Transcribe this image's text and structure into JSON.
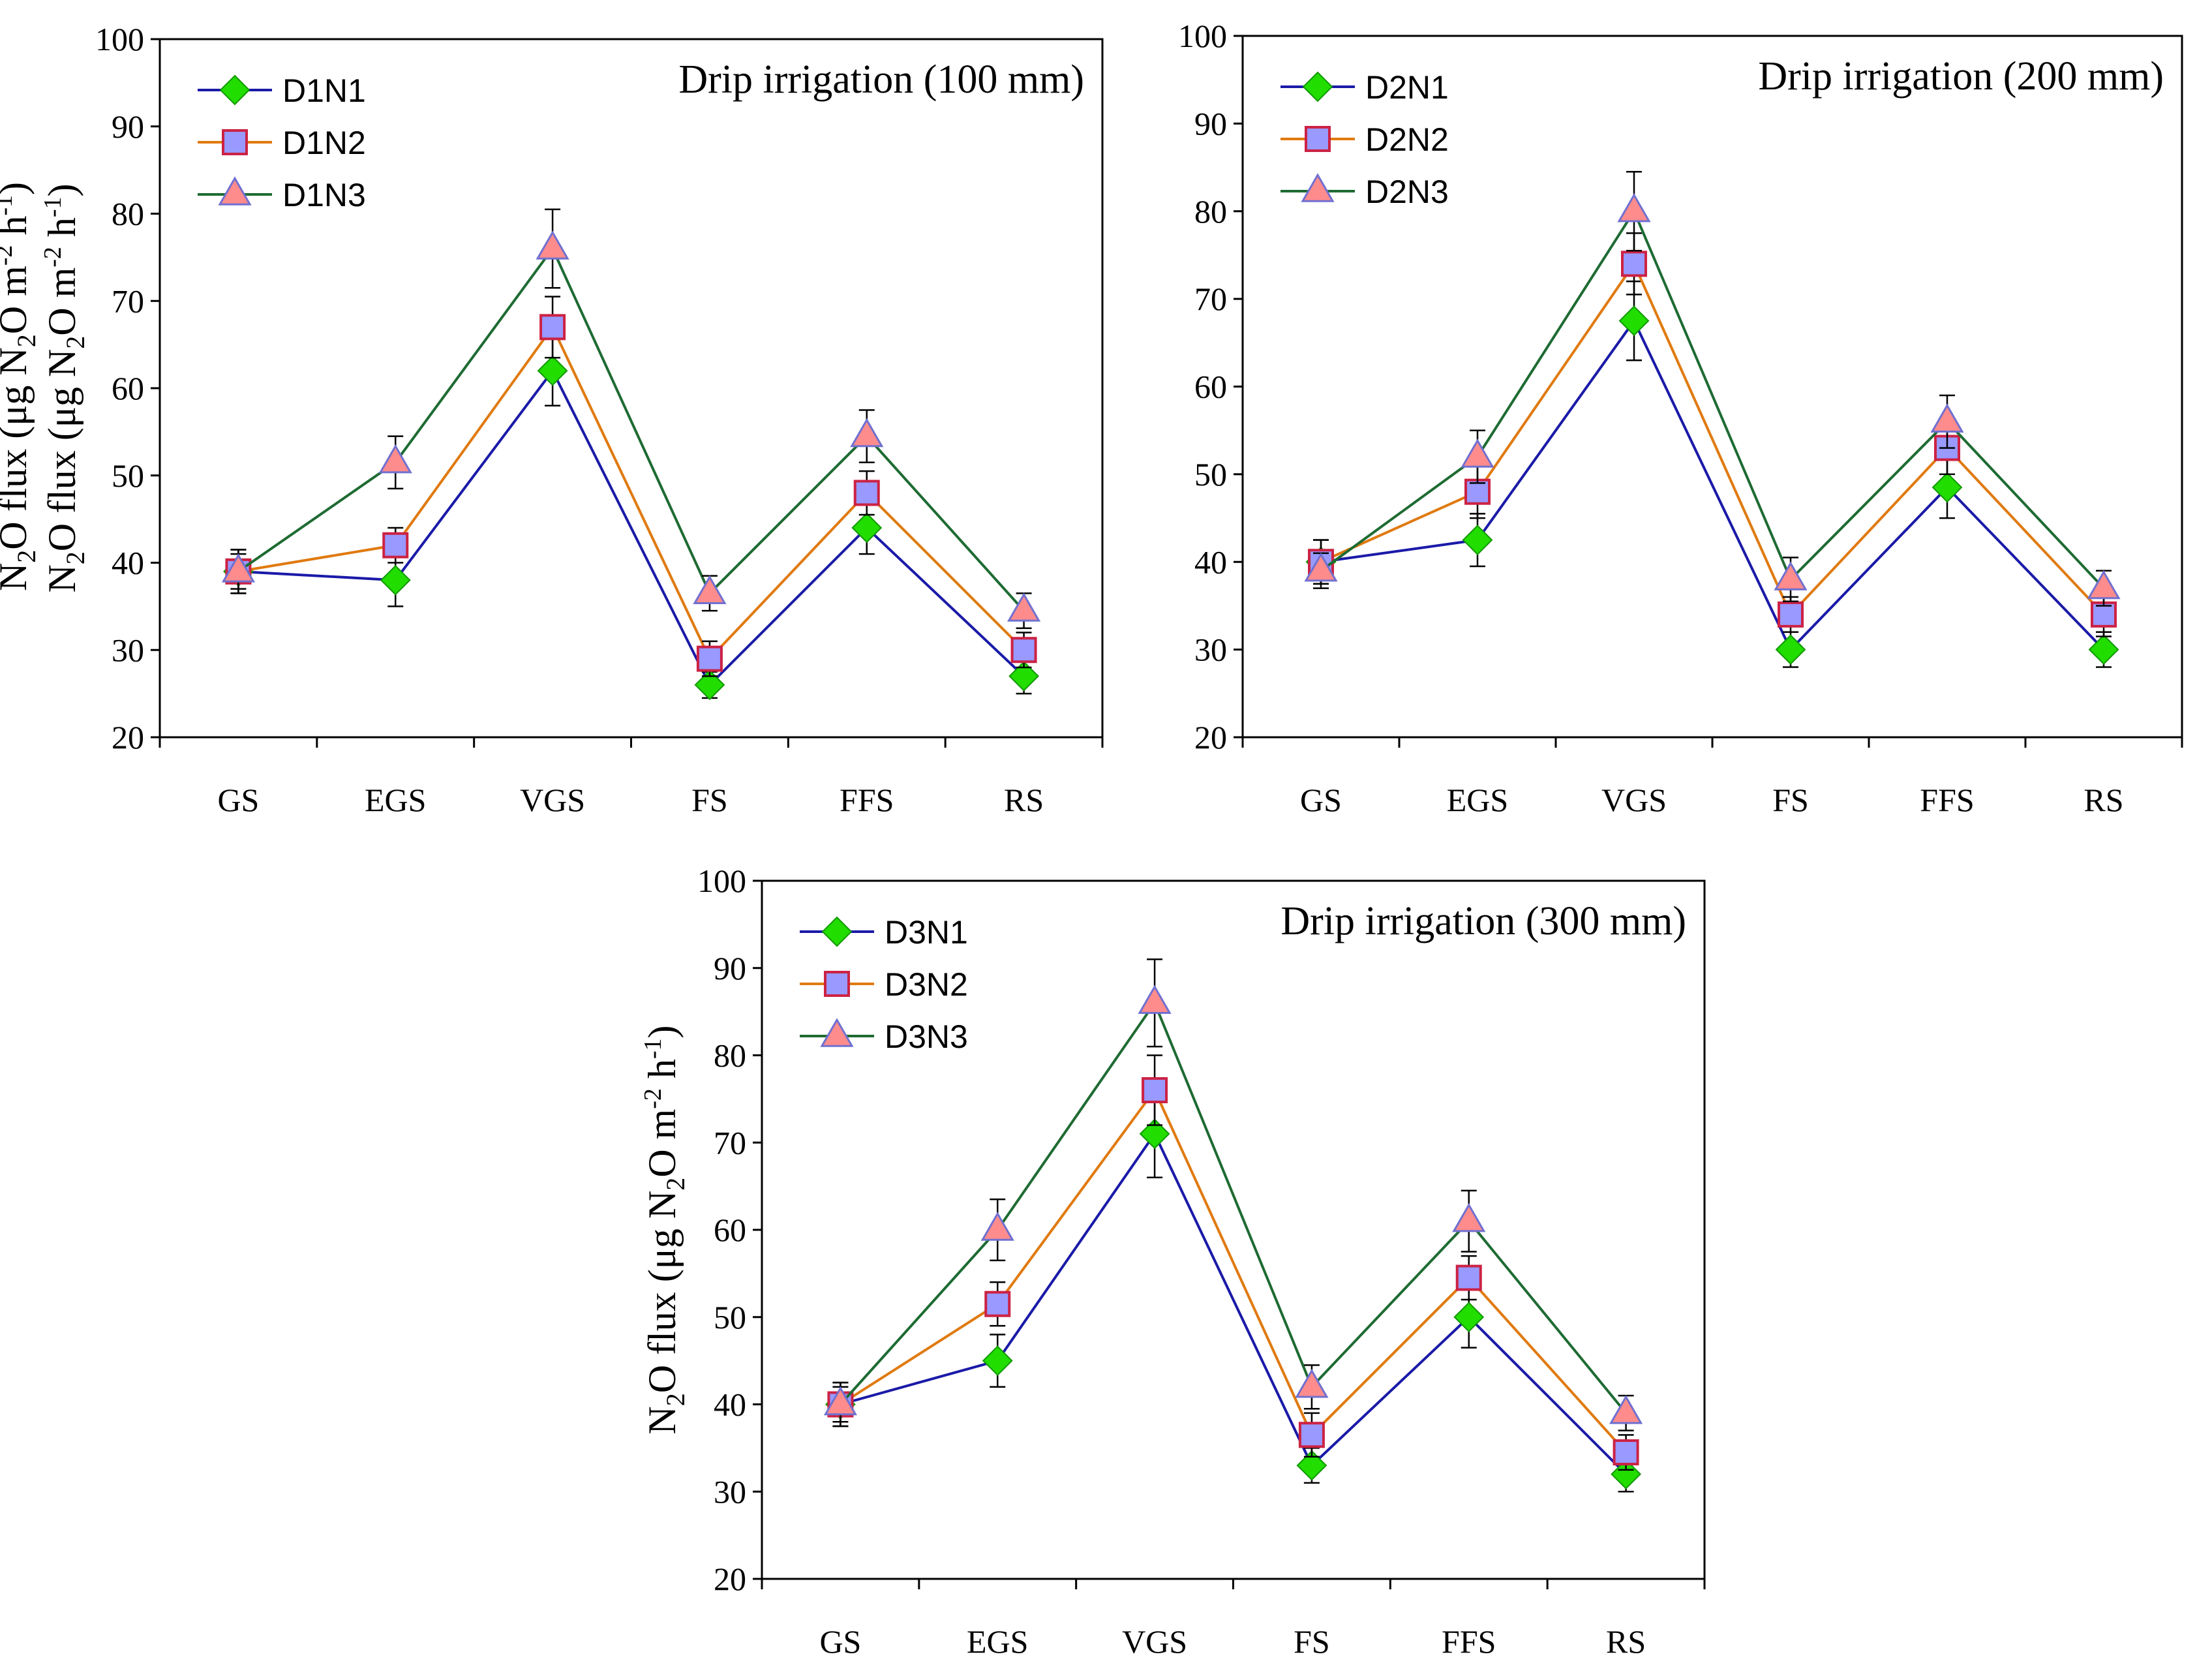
{
  "colors": {
    "N1_line": "#1a1aa8",
    "N2_line": "#e07a10",
    "N3_line": "#1e6b33",
    "N1_marker": "#22dd00",
    "N2_marker": "#9999ff",
    "N2_marker_edge": "#cc2244",
    "N3_marker": "#ff8c8c",
    "N3_marker_edge": "#7070d0"
  },
  "ylabel": {
    "p1": "N",
    "s1": "2",
    "p2": "O flux (μg N",
    "s2": "2",
    "p3": "O m",
    "sup1": "-2",
    "p4": " h",
    "sup2": "-1",
    "p5": ")"
  },
  "chart_data": [
    {
      "type": "line",
      "title": "Drip irrigation (100 mm)",
      "xlabel": "",
      "categories": [
        "GS",
        "EGS",
        "VGS",
        "FS",
        "FFS",
        "RS"
      ],
      "ylim": [
        20,
        100
      ],
      "yticks": [
        20,
        30,
        40,
        50,
        60,
        70,
        80,
        90,
        100
      ],
      "legend_position": "top-left",
      "series": [
        {
          "name": "D1N1",
          "marker": "diamond",
          "values": [
            39,
            38,
            62,
            26,
            44,
            27
          ],
          "errors": [
            2.5,
            3,
            4,
            1.5,
            3,
            2
          ]
        },
        {
          "name": "D1N2",
          "marker": "square",
          "values": [
            39,
            42,
            67,
            29,
            48,
            30
          ],
          "errors": [
            2,
            2,
            3.5,
            2,
            2.5,
            2
          ]
        },
        {
          "name": "D1N3",
          "marker": "triangle",
          "values": [
            39,
            51.5,
            76,
            36.5,
            54.5,
            34.5
          ],
          "errors": [
            2.5,
            3,
            4.5,
            2,
            3,
            2
          ]
        }
      ]
    },
    {
      "type": "line",
      "title": "Drip irrigation (200 mm)",
      "xlabel": "",
      "categories": [
        "GS",
        "EGS",
        "VGS",
        "FS",
        "FFS",
        "RS"
      ],
      "ylim": [
        20,
        100
      ],
      "yticks": [
        20,
        30,
        40,
        50,
        60,
        70,
        80,
        90,
        100
      ],
      "legend_position": "top-left",
      "series": [
        {
          "name": "D2N1",
          "marker": "diamond",
          "values": [
            40,
            42.5,
            67.5,
            30,
            48.5,
            30
          ],
          "errors": [
            2.5,
            3,
            4.5,
            2,
            3.5,
            2
          ]
        },
        {
          "name": "D2N2",
          "marker": "square",
          "values": [
            40,
            48,
            74,
            34,
            53,
            34
          ],
          "errors": [
            2.5,
            3,
            3.5,
            2,
            3,
            2.5
          ]
        },
        {
          "name": "D2N3",
          "marker": "triangle",
          "values": [
            39,
            52,
            80,
            38,
            56,
            37
          ],
          "errors": [
            2,
            3,
            4.5,
            2.5,
            3,
            2
          ]
        }
      ]
    },
    {
      "type": "line",
      "title": "Drip irrigation (300 mm)",
      "xlabel": "",
      "categories": [
        "GS",
        "EGS",
        "VGS",
        "FS",
        "FFS",
        "RS"
      ],
      "ylim": [
        20,
        100
      ],
      "yticks": [
        20,
        30,
        40,
        50,
        60,
        70,
        80,
        90,
        100
      ],
      "legend_position": "top-left",
      "series": [
        {
          "name": "D3N1",
          "marker": "diamond",
          "values": [
            40,
            45,
            71,
            33,
            50,
            32
          ],
          "errors": [
            2.5,
            3,
            5,
            2,
            3.5,
            2
          ]
        },
        {
          "name": "D3N2",
          "marker": "square",
          "values": [
            40,
            51.5,
            76,
            36.5,
            54.5,
            34.5
          ],
          "errors": [
            2,
            2.5,
            4,
            2.5,
            2.5,
            2
          ]
        },
        {
          "name": "D3N3",
          "marker": "triangle",
          "values": [
            40,
            60,
            86,
            42,
            61,
            39
          ],
          "errors": [
            2.5,
            3.5,
            5,
            2.5,
            3.5,
            2
          ]
        }
      ]
    }
  ]
}
